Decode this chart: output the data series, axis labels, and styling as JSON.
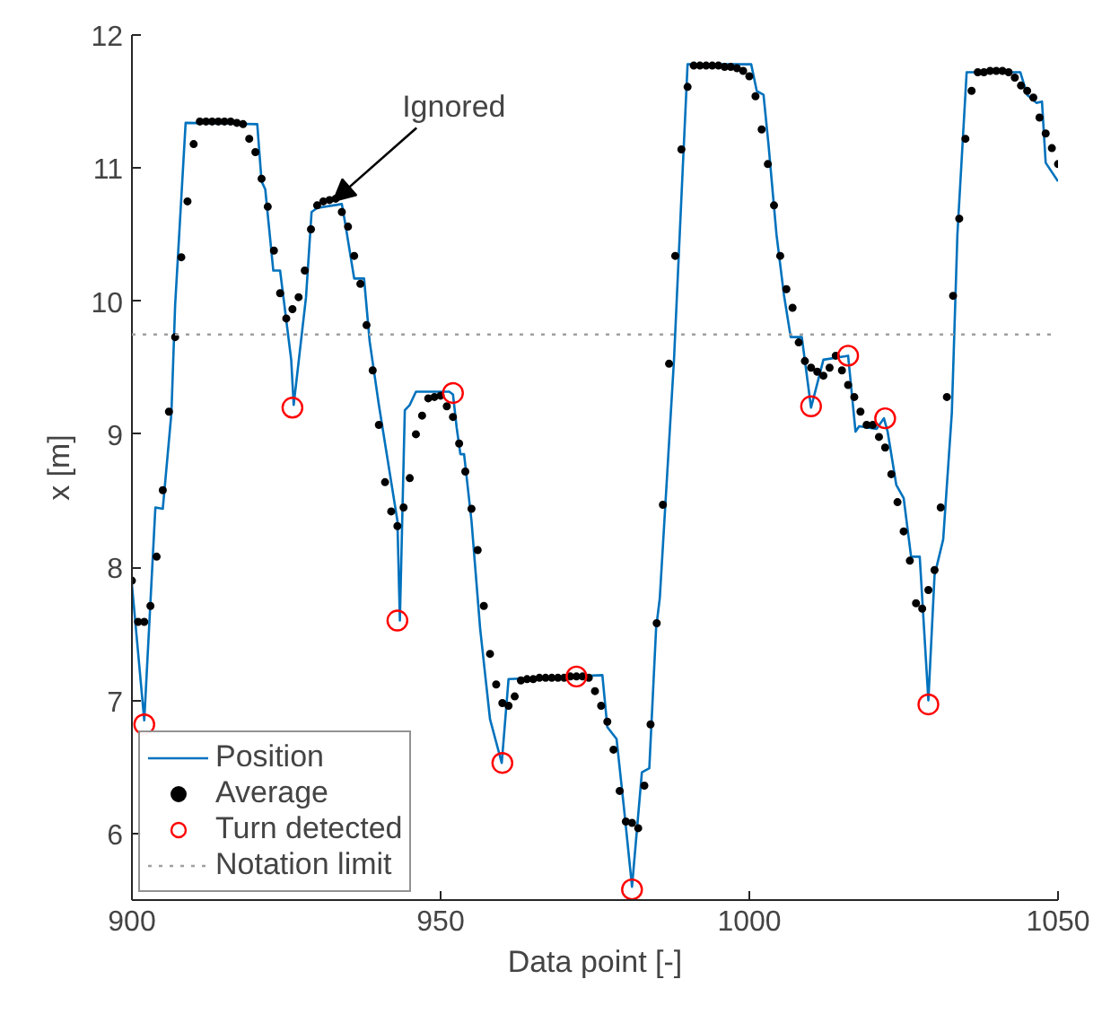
{
  "chart_data": {
    "type": "line",
    "xlabel": "Data point [-]",
    "ylabel": "x [m]",
    "xlim": [
      900,
      1050
    ],
    "ylim": [
      5.5,
      12
    ],
    "xticks": [
      900,
      950,
      1000,
      1050
    ],
    "yticks": [
      6,
      7,
      8,
      9,
      10,
      11,
      12
    ],
    "grid": false,
    "legend": "bottom left",
    "series": [
      {
        "name": "Position",
        "color": "#0072bd",
        "line_style": "solid",
        "x": [
          900,
          902,
          903.8,
          905,
          906.4,
          907,
          908.7,
          920.3,
          921,
          921.6,
          922.9,
          924,
          925.8,
          926.2,
          928.2,
          929.1,
          930,
          934,
          934.6,
          936,
          937.6,
          938.5,
          940,
          943,
          943.4,
          944.2,
          945,
          946,
          951.4,
          952,
          952.6,
          953.2,
          953.8,
          955,
          956.4,
          958,
          959.9,
          961,
          976.2,
          977,
          978.5,
          979.7,
          981,
          982.6,
          983.8,
          984.9,
          985.5,
          987.8,
          989.2,
          990,
          1000.3,
          1001.2,
          1002.3,
          1003.1,
          1004.4,
          1005.6,
          1006.7,
          1008.5,
          1010,
          1012,
          1016,
          1017.2,
          1017.8,
          1020.6,
          1021.8,
          1022.4,
          1023.8,
          1025,
          1026.2,
          1027.6,
          1029,
          1030,
          1031.4,
          1032.8,
          1033.7,
          1035.2,
          1043.9,
          1045,
          1046.5,
          1047.4,
          1048,
          1050
        ],
        "values": [
          7.87,
          6.85,
          8.45,
          8.44,
          9.16,
          9.97,
          11.34,
          11.33,
          10.9,
          10.84,
          10.23,
          10.23,
          9.56,
          9.22,
          10.03,
          10.67,
          10.7,
          10.73,
          10.57,
          10.17,
          10.17,
          9.7,
          9.22,
          8.35,
          7.6,
          9.18,
          9.22,
          9.32,
          9.32,
          9.3,
          9.05,
          8.85,
          8.85,
          8.35,
          7.54,
          6.86,
          6.53,
          7.16,
          7.19,
          6.8,
          6.71,
          6.19,
          5.6,
          6.46,
          6.49,
          7.54,
          7.77,
          9.56,
          10.98,
          11.78,
          11.78,
          11.58,
          11.55,
          11.18,
          10.5,
          10.05,
          9.73,
          9.73,
          9.2,
          9.56,
          9.59,
          9.02,
          9.06,
          9.04,
          9.12,
          9.02,
          8.62,
          8.52,
          8.08,
          8.08,
          7.0,
          7.94,
          8.21,
          9.16,
          10.5,
          11.72,
          11.72,
          11.55,
          11.49,
          11.5,
          11.04,
          10.9
        ]
      },
      {
        "name": "Average",
        "type": "scatter",
        "color": "#000000",
        "marker": "circle",
        "x": [
          900,
          901,
          902,
          903,
          904,
          905,
          906,
          907,
          908,
          909,
          910,
          911,
          912,
          913,
          914,
          915,
          916,
          917,
          918,
          919,
          920,
          921,
          922,
          923,
          924,
          925,
          926,
          927,
          928,
          929,
          930,
          931,
          932,
          933,
          934,
          935,
          936,
          937,
          938,
          939,
          940,
          941,
          942,
          943,
          944,
          945,
          946,
          947,
          948,
          949,
          950,
          951,
          952,
          953,
          954,
          955,
          956,
          957,
          958,
          959,
          960,
          961,
          962,
          963,
          964,
          965,
          966,
          967,
          968,
          969,
          970,
          971,
          972,
          973,
          974,
          975,
          976,
          977,
          978,
          979,
          980,
          981,
          982,
          983,
          984,
          985,
          986,
          987,
          988,
          989,
          990,
          991,
          992,
          993,
          994,
          995,
          996,
          997,
          998,
          999,
          1000,
          1001,
          1002,
          1003,
          1004,
          1005,
          1006,
          1007,
          1008,
          1009,
          1010,
          1011,
          1012,
          1013,
          1014,
          1015,
          1016,
          1017,
          1018,
          1019,
          1020,
          1021,
          1022,
          1023,
          1024,
          1025,
          1026,
          1027,
          1028,
          1029,
          1030,
          1031,
          1032,
          1033,
          1034,
          1035,
          1036,
          1037,
          1038,
          1039,
          1040,
          1041,
          1042,
          1043,
          1044,
          1045,
          1046,
          1047,
          1048,
          1049,
          1050
        ],
        "values": [
          7.9,
          7.59,
          7.59,
          7.71,
          8.08,
          8.58,
          9.17,
          9.73,
          10.33,
          10.75,
          11.18,
          11.35,
          11.35,
          11.35,
          11.35,
          11.35,
          11.35,
          11.34,
          11.33,
          11.22,
          11.12,
          10.92,
          10.71,
          10.38,
          10.06,
          9.87,
          9.94,
          10.03,
          10.23,
          10.54,
          10.72,
          10.75,
          10.76,
          10.77,
          10.67,
          10.56,
          10.34,
          10.13,
          9.82,
          9.48,
          9.07,
          8.64,
          8.42,
          8.31,
          8.45,
          8.67,
          9.0,
          9.14,
          9.27,
          9.28,
          9.29,
          9.21,
          9.13,
          8.93,
          8.72,
          8.44,
          8.13,
          7.71,
          7.35,
          7.12,
          6.98,
          6.96,
          7.03,
          7.15,
          7.16,
          7.16,
          7.17,
          7.17,
          7.17,
          7.17,
          7.17,
          7.18,
          7.18,
          7.18,
          7.17,
          7.07,
          6.96,
          6.84,
          6.63,
          6.32,
          6.09,
          6.08,
          6.04,
          6.36,
          6.82,
          7.58,
          8.47,
          9.53,
          10.34,
          11.14,
          11.61,
          11.77,
          11.77,
          11.77,
          11.77,
          11.77,
          11.76,
          11.76,
          11.75,
          11.73,
          11.69,
          11.54,
          11.29,
          11.03,
          10.72,
          10.34,
          10.09,
          9.95,
          9.69,
          9.55,
          9.5,
          9.47,
          9.44,
          9.5,
          9.59,
          9.48,
          9.37,
          9.28,
          9.17,
          9.07,
          9.07,
          8.98,
          8.9,
          8.7,
          8.49,
          8.27,
          8.05,
          7.73,
          7.69,
          7.83,
          7.98,
          8.45,
          9.28,
          10.04,
          10.62,
          11.22,
          11.58,
          11.72,
          11.72,
          11.73,
          11.73,
          11.73,
          11.72,
          11.68,
          11.62,
          11.58,
          11.53,
          11.38,
          11.26,
          11.15,
          11.03
        ]
      },
      {
        "name": "Turn detected",
        "type": "scatter",
        "color": "#ff0000",
        "marker": "circle_open",
        "x": [
          902,
          926,
          943,
          952,
          960,
          972,
          981,
          1010,
          1016,
          1022,
          1029
        ],
        "values": [
          6.82,
          9.2,
          7.6,
          9.31,
          6.53,
          7.18,
          5.58,
          9.21,
          9.59,
          9.12,
          6.97
        ]
      }
    ],
    "ref_lines": [
      {
        "axis": "y",
        "value": 9.75,
        "label": "Notation limit",
        "color": "#a0a0a0",
        "line_style": "dotted"
      }
    ],
    "annotations": [
      {
        "text": "Ignored",
        "x": 932.6,
        "y": 10.75
      }
    ]
  }
}
